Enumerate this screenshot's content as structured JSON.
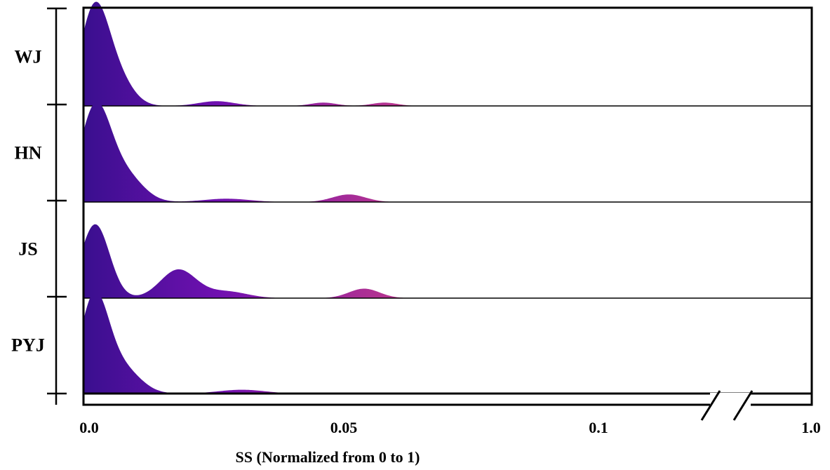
{
  "chart_data": {
    "type": "ridgeline",
    "title": "",
    "xlabel": "SS (Normalized from 0 to 1)",
    "ylabel": "",
    "x_ticks": [
      {
        "value": 0.0,
        "label": "0.0"
      },
      {
        "value": 0.05,
        "label": "0.05"
      },
      {
        "value": 0.1,
        "label": "0.1"
      },
      {
        "value": 1.0,
        "label": "1.0"
      }
    ],
    "x_axis_break": {
      "between": [
        0.1,
        1.0
      ]
    },
    "grid": false,
    "legend": "none",
    "colors": {
      "start": "#3a0f8f",
      "mid": "#7010b0",
      "end": "#c23a8a"
    },
    "series": [
      {
        "name": "WJ",
        "peaks": [
          {
            "x": 0.001,
            "sigma": 0.0028,
            "h": 1.0
          },
          {
            "x": 0.0055,
            "sigma": 0.003,
            "h": 0.28
          },
          {
            "x": 0.025,
            "sigma": 0.0035,
            "h": 0.05
          },
          {
            "x": 0.046,
            "sigma": 0.0025,
            "h": 0.035
          },
          {
            "x": 0.058,
            "sigma": 0.0025,
            "h": 0.035
          }
        ]
      },
      {
        "name": "HN",
        "peaks": [
          {
            "x": 0.0012,
            "sigma": 0.003,
            "h": 0.98
          },
          {
            "x": 0.007,
            "sigma": 0.0035,
            "h": 0.28
          },
          {
            "x": 0.027,
            "sigma": 0.0045,
            "h": 0.035
          },
          {
            "x": 0.051,
            "sigma": 0.0032,
            "h": 0.08
          }
        ]
      },
      {
        "name": "JS",
        "peaks": [
          {
            "x": 0.0012,
            "sigma": 0.0028,
            "h": 0.78
          },
          {
            "x": 0.0175,
            "sigma": 0.0035,
            "h": 0.3
          },
          {
            "x": 0.027,
            "sigma": 0.004,
            "h": 0.07
          },
          {
            "x": 0.054,
            "sigma": 0.003,
            "h": 0.1
          }
        ]
      },
      {
        "name": "PYJ",
        "peaks": [
          {
            "x": 0.001,
            "sigma": 0.0028,
            "h": 1.0
          },
          {
            "x": 0.0065,
            "sigma": 0.0035,
            "h": 0.26
          },
          {
            "x": 0.03,
            "sigma": 0.0045,
            "h": 0.04
          }
        ]
      }
    ]
  }
}
